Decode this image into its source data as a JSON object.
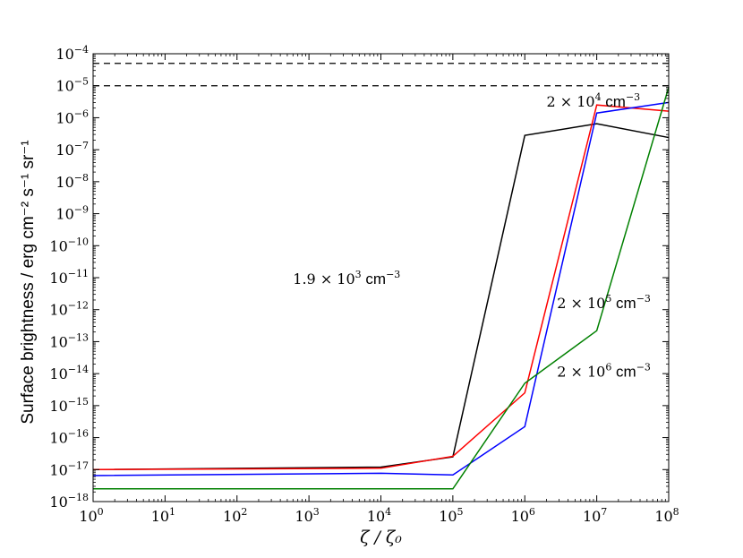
{
  "chart_data": {
    "type": "line",
    "xscale": "log",
    "yscale": "log",
    "xlim": [
      1,
      100000000
    ],
    "ylim": [
      1e-18,
      0.0001
    ],
    "xlabel": "ζ / ζ₀",
    "ylabel": "Surface brightness / erg cm⁻² s⁻¹ sr⁻¹",
    "x_ticks": [
      {
        "base": "10",
        "exp": "0",
        "value": 1
      },
      {
        "base": "10",
        "exp": "1",
        "value": 10
      },
      {
        "base": "10",
        "exp": "2",
        "value": 100
      },
      {
        "base": "10",
        "exp": "3",
        "value": 1000
      },
      {
        "base": "10",
        "exp": "4",
        "value": 10000
      },
      {
        "base": "10",
        "exp": "5",
        "value": 100000
      },
      {
        "base": "10",
        "exp": "6",
        "value": 1000000
      },
      {
        "base": "10",
        "exp": "7",
        "value": 10000000
      },
      {
        "base": "10",
        "exp": "8",
        "value": 100000000
      }
    ],
    "y_ticks": [
      {
        "base": "10",
        "exp": "−18",
        "value": 1e-18
      },
      {
        "base": "10",
        "exp": "−17",
        "value": 1e-17
      },
      {
        "base": "10",
        "exp": "−16",
        "value": 1e-16
      },
      {
        "base": "10",
        "exp": "−15",
        "value": 1e-15
      },
      {
        "base": "10",
        "exp": "−14",
        "value": 1e-14
      },
      {
        "base": "10",
        "exp": "−13",
        "value": 1e-13
      },
      {
        "base": "10",
        "exp": "−12",
        "value": 1e-12
      },
      {
        "base": "10",
        "exp": "−11",
        "value": 1e-11
      },
      {
        "base": "10",
        "exp": "−10",
        "value": 1e-10
      },
      {
        "base": "10",
        "exp": "−9",
        "value": 1e-09
      },
      {
        "base": "10",
        "exp": "−8",
        "value": 1e-08
      },
      {
        "base": "10",
        "exp": "−7",
        "value": 1e-07
      },
      {
        "base": "10",
        "exp": "−6",
        "value": 1e-06
      },
      {
        "base": "10",
        "exp": "−5",
        "value": 1e-05
      },
      {
        "base": "10",
        "exp": "−4",
        "value": 0.0001
      }
    ],
    "hlines": [
      {
        "y": 5e-05,
        "color": "#000000",
        "style": "dashed"
      },
      {
        "y": 1e-05,
        "color": "#000000",
        "style": "dashed"
      }
    ],
    "series": [
      {
        "color": "#000000",
        "x": [
          1,
          10000,
          100000,
          1000000,
          10000000,
          100000000
        ],
        "y": [
          1e-17,
          1.2e-17,
          2.5e-17,
          2.8e-07,
          6.5e-07,
          2.4e-07
        ]
      },
      {
        "color": "#ff0000",
        "x": [
          1,
          10000,
          100000,
          1000000,
          10000000,
          100000000
        ],
        "y": [
          1e-17,
          1.1e-17,
          2.6e-17,
          2.5e-15,
          2.5e-06,
          1.6e-06
        ]
      },
      {
        "color": "#0000ff",
        "x": [
          1,
          10000,
          100000,
          1000000,
          10000000,
          100000000
        ],
        "y": [
          6.5e-18,
          7.7e-18,
          6.8e-18,
          2.2e-16,
          1.4e-06,
          3e-06
        ]
      },
      {
        "color": "#008000",
        "x": [
          1,
          100000,
          1000000,
          10000000,
          100000000
        ],
        "y": [
          2.5e-18,
          2.5e-18,
          5e-15,
          2.2e-13,
          9e-06
        ]
      }
    ],
    "annotations": [
      {
        "id": "black",
        "x": 600,
        "y": 6.4e-12,
        "anchor": "start",
        "pre": "1.9 × 10",
        "exp": "3",
        "unit": " cm",
        "unit_exp": "−3"
      },
      {
        "id": "red",
        "x": 2000000,
        "y": 2.2e-06,
        "anchor": "start",
        "pre": "2 × 10",
        "exp": "4",
        "unit": " cm",
        "unit_exp": "−3"
      },
      {
        "id": "blue",
        "x": 2800000,
        "y": 1.1e-12,
        "anchor": "start",
        "pre": "2 × 10",
        "exp": "5",
        "unit": " cm",
        "unit_exp": "−3"
      },
      {
        "id": "green",
        "x": 2800000,
        "y": 8e-15,
        "anchor": "start",
        "pre": "2 × 10",
        "exp": "6",
        "unit": " cm",
        "unit_exp": "−3"
      }
    ]
  }
}
